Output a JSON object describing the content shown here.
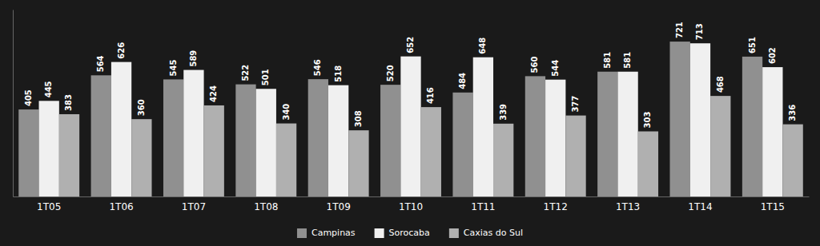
{
  "chart_data": {
    "type": "bar",
    "categories": [
      "1T05",
      "1T06",
      "1T07",
      "1T08",
      "1T09",
      "1T10",
      "1T11",
      "1T12",
      "1T13",
      "1T14",
      "1T15"
    ],
    "series": [
      {
        "name": "Campinas",
        "color": "#909090",
        "values": [
          405,
          564,
          545,
          522,
          546,
          520,
          484,
          560,
          581,
          721,
          651
        ]
      },
      {
        "name": "Sorocaba",
        "color": "#f0f0f0",
        "values": [
          445,
          626,
          589,
          501,
          518,
          652,
          648,
          544,
          581,
          713,
          602
        ]
      },
      {
        "name": "Caxias do Sul",
        "color": "#b0b0b0",
        "values": [
          383,
          360,
          424,
          340,
          308,
          416,
          339,
          377,
          303,
          468,
          336
        ]
      }
    ],
    "ylim": [
      0,
      870
    ],
    "data_labels": true,
    "tick_labels": "x",
    "grid": false,
    "legend": "bottom"
  }
}
